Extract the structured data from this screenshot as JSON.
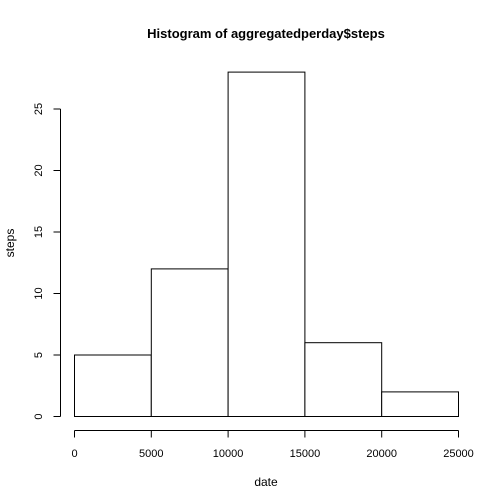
{
  "chart_data": {
    "type": "bar",
    "title": "Histogram of aggregatedperday$steps",
    "xlabel": "date",
    "ylabel": "steps",
    "bins": [
      {
        "from": 0,
        "to": 5000,
        "value": 5
      },
      {
        "from": 5000,
        "to": 10000,
        "value": 12
      },
      {
        "from": 10000,
        "to": 15000,
        "value": 28
      },
      {
        "from": 15000,
        "to": 20000,
        "value": 6
      },
      {
        "from": 20000,
        "to": 25000,
        "value": 2
      }
    ],
    "xlim": [
      0,
      25000
    ],
    "ylim": [
      0,
      28
    ],
    "x_ticks": [
      0,
      5000,
      10000,
      15000,
      20000,
      25000
    ],
    "y_ticks": [
      0,
      5,
      10,
      15,
      20,
      25
    ],
    "grid": false,
    "colors": {
      "bar_fill": "#ffffff",
      "bar_stroke": "#000000"
    }
  }
}
